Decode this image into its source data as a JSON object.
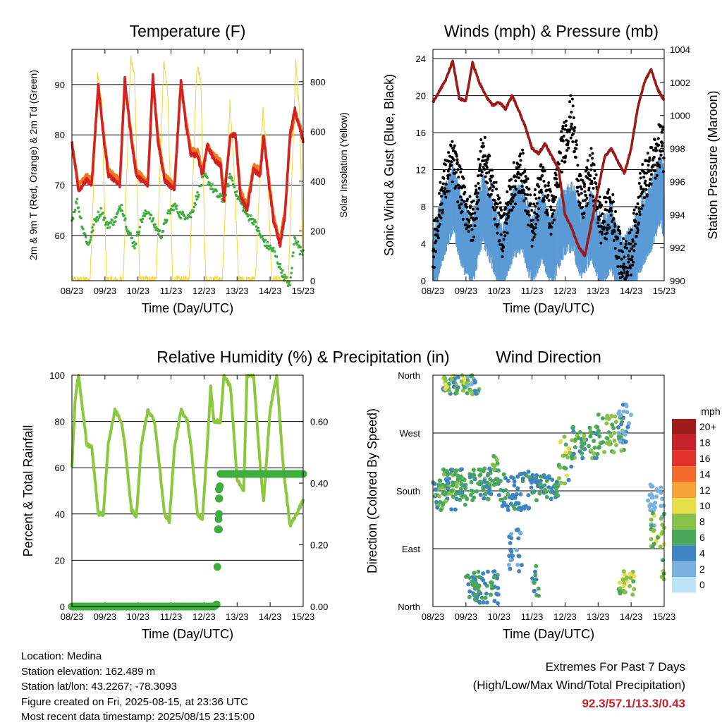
{
  "x_ticks": [
    "08/23",
    "09/23",
    "10/23",
    "11/23",
    "12/23",
    "13/23",
    "14/23",
    "15/23"
  ],
  "xlabel": "Time (Day/UTC)",
  "colors": {
    "t2m": "#d42222",
    "t9m": "#f07a1e",
    "td": "#3fae3f",
    "solar": "#f5d33b",
    "wind": "#5b9bd5",
    "gust": "#000000",
    "pressure": "#9b1b1b",
    "rh": "#8dc63f",
    "precip": "#3fae3f"
  },
  "chart_data": [
    {
      "type": "line",
      "title": "Temperature (F)",
      "xlabel": "Time (Day/UTC)",
      "ylabel": "2m & 9m T (Red, Orange) & 2m Td (Green)",
      "y2label": "Solar Insolation (Yellow)",
      "ylim": [
        51,
        97
      ],
      "y2lim": [
        0,
        930
      ],
      "yticks": [
        60,
        70,
        80,
        90
      ],
      "y2ticks": [
        0,
        200,
        400,
        600,
        800
      ],
      "series": [
        {
          "name": "2m T",
          "x": [
            0,
            0.2,
            0.45,
            0.6,
            0.8,
            0.95,
            1.1,
            1.3,
            1.45,
            1.6,
            1.8,
            1.95,
            2.1,
            2.3,
            2.45,
            2.6,
            2.8,
            2.95,
            3.1,
            3.3,
            3.45,
            3.6,
            3.8,
            3.95,
            4.1,
            4.3,
            4.5,
            4.6,
            4.8,
            4.95,
            5.1,
            5.3,
            5.5,
            5.7,
            5.8,
            5.95,
            6.1,
            6.3,
            6.45,
            6.6,
            6.75,
            6.9,
            7.0
          ],
          "values": [
            78.5,
            69,
            71,
            70,
            90,
            80,
            72,
            71,
            70,
            91,
            79,
            72,
            71,
            70,
            92,
            79,
            71,
            70,
            69,
            91,
            82,
            76,
            76,
            72,
            78,
            75,
            74,
            67,
            80,
            80,
            68,
            65,
            73,
            72,
            80,
            71,
            63,
            58,
            64,
            80,
            85,
            81,
            78.5
          ]
        },
        {
          "name": "9m T",
          "x": [
            0,
            0.2,
            0.45,
            0.6,
            0.8,
            0.95,
            1.1,
            1.3,
            1.45,
            1.6,
            1.8,
            1.95,
            2.1,
            2.3,
            2.45,
            2.6,
            2.8,
            2.95,
            3.1,
            3.3,
            3.45,
            3.6,
            3.8,
            3.95,
            4.1,
            4.3,
            4.5,
            4.6,
            4.8,
            4.95,
            5.1,
            5.3,
            5.5,
            5.7,
            5.8,
            5.95,
            6.1,
            6.3,
            6.45,
            6.6,
            6.75,
            6.9,
            7.0
          ],
          "values": [
            78.5,
            70,
            72,
            71,
            89,
            81,
            73,
            72,
            71,
            90,
            80,
            73,
            72,
            71,
            91,
            80,
            72,
            71,
            70,
            90,
            83,
            77,
            77,
            73,
            78,
            76,
            75,
            68,
            80,
            80,
            69,
            66,
            74,
            73,
            80,
            72,
            64,
            59,
            65,
            79,
            84,
            82,
            79
          ]
        },
        {
          "name": "2m Td",
          "x": [
            0,
            0.15,
            0.35,
            0.5,
            0.7,
            0.9,
            1.05,
            1.3,
            1.5,
            1.7,
            1.9,
            2.1,
            2.3,
            2.5,
            2.7,
            2.9,
            3.1,
            3.3,
            3.6,
            3.8,
            4.0,
            4.2,
            4.4,
            4.6,
            4.8,
            5.0,
            5.3,
            5.5,
            5.7,
            5.9,
            6.1,
            6.4,
            6.6,
            6.75,
            6.9
          ],
          "values": [
            63,
            67,
            61,
            58,
            63,
            65,
            62,
            63,
            66,
            61,
            58,
            63,
            65,
            62,
            60,
            64,
            66,
            64,
            64,
            68,
            72,
            70,
            68,
            67,
            72,
            68,
            64,
            63,
            60,
            58,
            57,
            52,
            50,
            60,
            57
          ]
        },
        {
          "name": "Solar",
          "x": [
            0,
            0.55,
            0.78,
            0.9,
            1.05,
            1.55,
            1.78,
            1.9,
            2.05,
            2.55,
            2.78,
            2.9,
            3.05,
            3.55,
            3.78,
            3.9,
            4.05,
            4.55,
            4.78,
            4.9,
            5.05,
            5.55,
            5.78,
            5.9,
            6.05,
            6.55,
            6.78,
            6.9,
            7.0
          ],
          "values": [
            0,
            0,
            830,
            720,
            0,
            0,
            890,
            820,
            0,
            0,
            880,
            760,
            0,
            0,
            860,
            820,
            0,
            0,
            710,
            480,
            0,
            0,
            690,
            500,
            0,
            0,
            880,
            650,
            0
          ]
        }
      ]
    },
    {
      "type": "line",
      "title": "Winds (mph) & Pressure (mb)",
      "xlabel": "Time (Day/UTC)",
      "ylabel": "Sonic Wind & Gust (Blue, Black)",
      "y2label": "Station Pressure (Maroon)",
      "ylim": [
        0,
        25
      ],
      "y2lim": [
        990,
        1004
      ],
      "yticks": [
        0,
        4,
        8,
        12,
        16,
        20,
        24
      ],
      "y2ticks": [
        990,
        992,
        994,
        996,
        998,
        1000,
        1002,
        1004
      ],
      "series": [
        {
          "name": "Pressure",
          "x": [
            0,
            0.2,
            0.4,
            0.6,
            0.8,
            1.0,
            1.2,
            1.4,
            1.6,
            1.8,
            2.0,
            2.2,
            2.4,
            2.6,
            2.8,
            3.0,
            3.2,
            3.4,
            3.6,
            3.8,
            4.0,
            4.2,
            4.4,
            4.6,
            4.8,
            5.0,
            5.2,
            5.4,
            5.6,
            5.8,
            6.0,
            6.2,
            6.4,
            6.6,
            6.8,
            7.0
          ],
          "values": [
            1000.8,
            1001.5,
            1002.2,
            1003.3,
            1001.0,
            1000.9,
            1003.2,
            1002.0,
            1001.2,
            1000.6,
            1000.8,
            1000.4,
            1001.2,
            1000.3,
            999.3,
            998.0,
            997.7,
            998.3,
            997.5,
            996.8,
            994.0,
            993.2,
            992.1,
            991.5,
            993.5,
            995.5,
            997.5,
            998.0,
            997.2,
            996.5,
            998.0,
            1000.5,
            1002.0,
            1002.8,
            1001.6,
            1000.9
          ]
        },
        {
          "name": "Wind",
          "x": [
            0,
            0.3,
            0.6,
            0.9,
            1.2,
            1.5,
            1.8,
            2.1,
            2.4,
            2.7,
            3.0,
            3.3,
            3.6,
            3.9,
            4.2,
            4.5,
            4.8,
            5.1,
            5.4,
            5.7,
            6.0,
            6.3,
            6.6,
            6.9,
            7.0
          ],
          "values": [
            2,
            6,
            9,
            5,
            3,
            8,
            5,
            2,
            6,
            7,
            3,
            6,
            3,
            6,
            7,
            4,
            6,
            3,
            5,
            1,
            2,
            5,
            7,
            10,
            8
          ]
        },
        {
          "name": "Gust",
          "x": [
            0,
            0.3,
            0.6,
            0.9,
            1.2,
            1.5,
            1.8,
            2.1,
            2.4,
            2.7,
            3.0,
            3.3,
            3.6,
            3.9,
            4.2,
            4.5,
            4.8,
            5.1,
            5.4,
            5.7,
            6.0,
            6.3,
            6.6,
            6.9,
            7.0
          ],
          "values": [
            3,
            10,
            13,
            9,
            6,
            14,
            10,
            5,
            10,
            12,
            6,
            11,
            7,
            14,
            18,
            8,
            12,
            6,
            8,
            2,
            3,
            10,
            12,
            15,
            14
          ]
        }
      ]
    },
    {
      "type": "line",
      "title": "Relative Humidity (%) & Precipitation (in)",
      "xlabel": "Time (Day/UTC)",
      "ylabel": "Percent & Total Rainfall",
      "ylim": [
        0,
        100
      ],
      "y2lim": [
        0,
        0.75
      ],
      "yticks": [
        0,
        20,
        40,
        60,
        80,
        100
      ],
      "y2ticks": [
        "0.00",
        "0.20",
        "0.40",
        "0.60"
      ],
      "series": [
        {
          "name": "RH",
          "x": [
            0,
            0.1,
            0.2,
            0.45,
            0.6,
            0.8,
            0.95,
            1.1,
            1.3,
            1.5,
            1.6,
            1.8,
            1.95,
            2.1,
            2.3,
            2.5,
            2.6,
            2.8,
            2.95,
            3.1,
            3.3,
            3.5,
            3.6,
            3.8,
            3.95,
            4.1,
            4.2,
            4.3,
            4.5,
            4.6,
            4.8,
            5.0,
            5.2,
            5.3,
            5.5,
            5.7,
            5.8,
            6.0,
            6.2,
            6.4,
            6.6,
            6.8,
            7.0
          ],
          "values": [
            60,
            90,
            100,
            70,
            69,
            40,
            40,
            70,
            85,
            80,
            70,
            42,
            39,
            70,
            85,
            80,
            68,
            40,
            37,
            68,
            85,
            80,
            70,
            40,
            38,
            70,
            95,
            80,
            80,
            100,
            95,
            55,
            50,
            100,
            100,
            60,
            45,
            85,
            100,
            60,
            35,
            40,
            46
          ]
        },
        {
          "name": "Precip",
          "x": [
            0,
            4.3,
            4.38,
            4.42,
            4.45,
            4.46,
            4.5,
            7.0
          ],
          "values": [
            0,
            0,
            0.007,
            0.25,
            0.3,
            0.35,
            0.43,
            0.43
          ]
        }
      ]
    },
    {
      "type": "scatter",
      "title": "Wind Direction",
      "xlabel": "Time (Day/UTC)",
      "ylabel": "Direction (Colored By Speed)",
      "yticks": [
        "North",
        "East",
        "South",
        "West",
        "North"
      ],
      "ylim": [
        0,
        360
      ],
      "legend_title": "mph",
      "legend_labels": [
        "20+",
        "18",
        "16",
        "14",
        "12",
        "10",
        "8",
        "6",
        "4",
        "2",
        "0"
      ],
      "legend_colors": [
        "#9e1c1c",
        "#c8232c",
        "#e0312a",
        "#f46a2a",
        "#f8a23a",
        "#e8de4a",
        "#86c24a",
        "#4aa85a",
        "#3f85c1",
        "#79b2e0",
        "#bde3f7"
      ]
    }
  ],
  "info": {
    "location": "Location: Medina",
    "elevation": "Station elevation: 162.489 m",
    "latlon": "Station lat/lon: 43.2267; -78.3093",
    "created": "Figure created on Fri, 2025-08-15, at 23:36 UTC",
    "recent": "Most recent data timestamp: 2025/08/15 23:15:00"
  },
  "extremes": {
    "line1": "Extremes For Past 7 Days",
    "line2": "(High/Low/Max Wind/Total Precipitation)",
    "value": "92.3/57.1/13.3/0.43"
  }
}
